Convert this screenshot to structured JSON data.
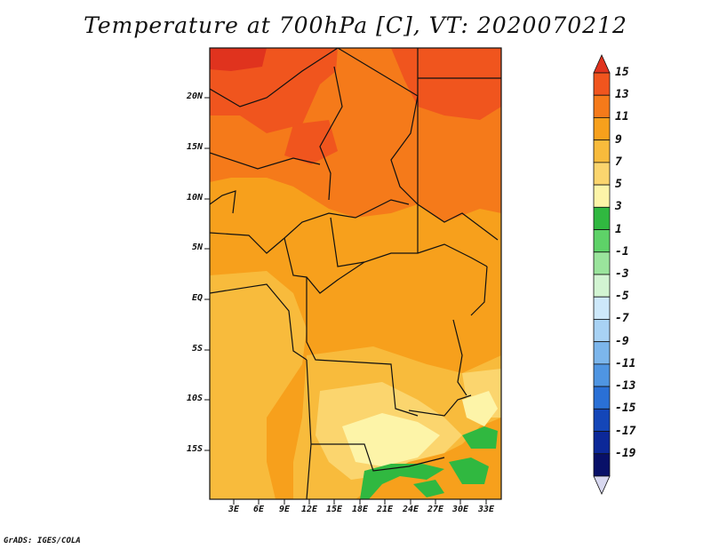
{
  "title": "Temperature at 700hPa [C], VT: 2020070212",
  "credit": "GrADS: IGES/COLA",
  "lat_labels": [
    "20N",
    "15N",
    "10N",
    "5N",
    "EQ",
    "5S",
    "10S",
    "15S"
  ],
  "lon_labels": [
    "3E",
    "6E",
    "9E",
    "12E",
    "15E",
    "18E",
    "21E",
    "24E",
    "27E",
    "30E",
    "33E"
  ],
  "colorbar": {
    "labels": [
      "15",
      "13",
      "11",
      "9",
      "7",
      "5",
      "3",
      "1",
      "-1",
      "-3",
      "-5",
      "-7",
      "-9",
      "-11",
      "-13",
      "-15",
      "-17",
      "-19"
    ],
    "colors": [
      "#e0331e",
      "#f0551e",
      "#f57a1a",
      "#f7a01c",
      "#f8bb3c",
      "#fbd56e",
      "#fdf4a8",
      "#30b840",
      "#5ed268",
      "#9ae49c",
      "#d2f4d2",
      "#cde8fa",
      "#a8d2f4",
      "#7cb6ec",
      "#4f95e2",
      "#2a70d6",
      "#1446b8",
      "#0c2898",
      "#081068",
      "#d8d8f0"
    ]
  }
}
